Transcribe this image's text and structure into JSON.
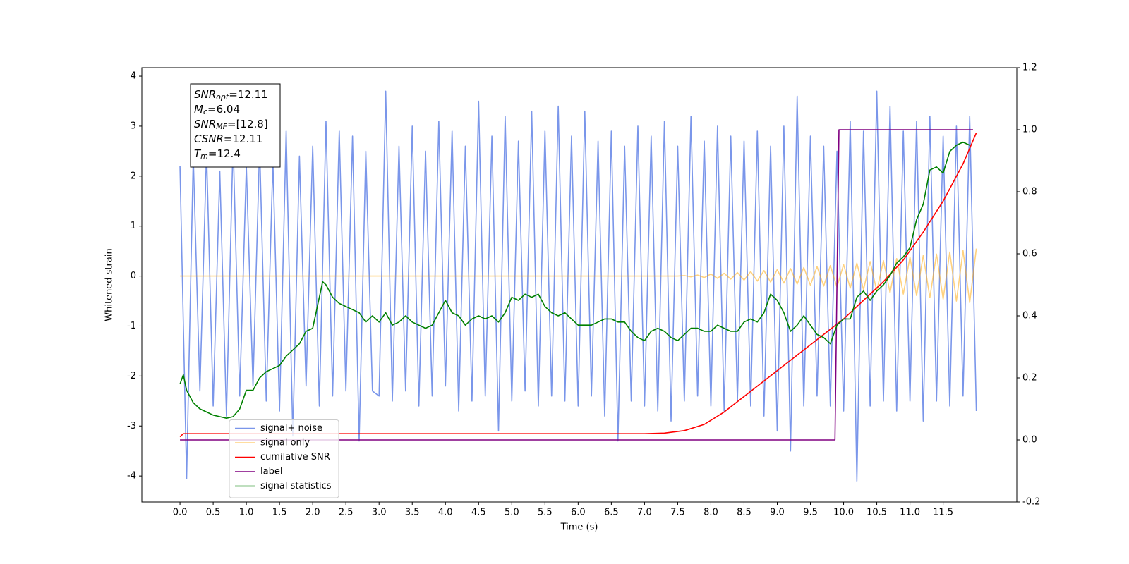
{
  "chart_data": {
    "type": "line",
    "xlabel": "Time (s)",
    "ylabel": "Whitened strain",
    "xlim": [
      -0.575,
      12.61
    ],
    "ylim": [
      -4.52,
      4.17
    ],
    "y2lim": [
      -0.2,
      1.2
    ],
    "xticks": [
      {
        "value": 0,
        "label": "0.0"
      },
      0.5,
      {
        "value": 1,
        "label": "1.0"
      },
      1.5,
      {
        "value": 2,
        "label": "2.0"
      },
      2.5,
      {
        "value": 3,
        "label": "3.0"
      },
      3.5,
      {
        "value": 4,
        "label": "4.0"
      },
      4.5,
      {
        "value": 5,
        "label": "5.0"
      },
      5.5,
      {
        "value": 6,
        "label": "6.0"
      },
      6.5,
      {
        "value": 7,
        "label": "7.0"
      },
      7.5,
      {
        "value": 8,
        "label": "8.0"
      },
      8.5,
      {
        "value": 9,
        "label": "9.0"
      },
      9.5,
      {
        "value": 10,
        "label": "10.0"
      },
      10.5,
      {
        "value": 11,
        "label": "11.0"
      },
      11.5
    ],
    "yticks": [
      -4,
      -3,
      -2,
      -1,
      0,
      1,
      2,
      3,
      4
    ],
    "y2ticks": [
      -0.2,
      {
        "value": 0,
        "label": "0.0"
      },
      0.2,
      0.4,
      0.6,
      0.8,
      {
        "value": 1,
        "label": "1.0"
      },
      1.2
    ],
    "legend_loc": "lower left",
    "annotation": [
      {
        "name": "SNR",
        "sub": "opt",
        "text": "=12.11"
      },
      {
        "name": "M",
        "sub": "c",
        "text": "=6.04"
      },
      {
        "name": "SNR",
        "sub": "MF",
        "text": "=[12.8]"
      },
      {
        "name": "CSNR",
        "text": "=12.11"
      },
      {
        "name": "T",
        "sub": "m",
        "text": "=12.4"
      }
    ],
    "series": [
      {
        "name": "signal+ noise",
        "color": "#4169e1",
        "opacity": 0.7,
        "x": [
          0,
          0.1,
          0.2,
          0.3,
          0.4,
          0.5,
          0.6,
          0.7,
          0.8,
          0.9,
          1.0,
          1.1,
          1.2,
          1.3,
          1.4,
          1.5,
          1.6,
          1.7,
          1.8,
          1.9,
          2.0,
          2.1,
          2.2,
          2.3,
          2.4,
          2.5,
          2.6,
          2.7,
          2.8,
          2.9,
          3.0,
          3.1,
          3.2,
          3.3,
          3.4,
          3.5,
          3.6,
          3.7,
          3.8,
          3.9,
          4.0,
          4.1,
          4.2,
          4.3,
          4.4,
          4.5,
          4.6,
          4.7,
          4.8,
          4.9,
          5.0,
          5.1,
          5.2,
          5.3,
          5.4,
          5.5,
          5.6,
          5.7,
          5.8,
          5.9,
          6.0,
          6.1,
          6.2,
          6.3,
          6.4,
          6.5,
          6.6,
          6.7,
          6.8,
          6.9,
          7.0,
          7.1,
          7.2,
          7.3,
          7.4,
          7.5,
          7.6,
          7.7,
          7.8,
          7.9,
          8.0,
          8.1,
          8.2,
          8.3,
          8.4,
          8.5,
          8.6,
          8.7,
          8.8,
          8.9,
          9.0,
          9.1,
          9.2,
          9.3,
          9.4,
          9.5,
          9.6,
          9.7,
          9.8,
          9.9,
          10.0,
          10.1,
          10.2,
          10.3,
          10.4,
          10.5,
          10.6,
          10.7,
          10.8,
          10.9,
          11.0,
          11.1,
          11.2,
          11.3,
          11.4,
          11.5,
          11.6,
          11.7,
          11.8,
          11.9,
          12.0
        ],
        "values": [
          2.2,
          -4.05,
          2.4,
          -2.3,
          2.5,
          -2.6,
          2.1,
          -2.8,
          2.7,
          -2.4,
          2.2,
          -2.2,
          2.6,
          -2.5,
          2.3,
          -2.7,
          2.9,
          -3.2,
          2.4,
          -2.2,
          2.6,
          -2.6,
          3.1,
          -2.4,
          2.9,
          -2.3,
          2.8,
          -3.3,
          2.5,
          -2.3,
          -2.4,
          3.7,
          -2.5,
          2.6,
          -2.3,
          3.0,
          -2.6,
          2.5,
          -2.4,
          3.1,
          -2.2,
          2.9,
          -2.7,
          2.6,
          -2.5,
          3.5,
          -2.4,
          2.8,
          -3.1,
          3.2,
          -2.5,
          2.7,
          -2.3,
          3.3,
          -2.6,
          2.9,
          -2.4,
          3.4,
          -2.5,
          2.8,
          -2.6,
          3.3,
          -2.4,
          2.7,
          -2.8,
          2.9,
          -3.3,
          2.6,
          -2.5,
          3.0,
          -2.6,
          2.8,
          -2.7,
          3.1,
          -2.9,
          2.6,
          -2.5,
          3.2,
          -2.4,
          2.7,
          -2.6,
          3.0,
          -2.7,
          2.8,
          -2.5,
          2.7,
          -2.6,
          2.9,
          -2.8,
          2.6,
          -3.1,
          3.0,
          -3.5,
          3.6,
          -2.6,
          2.8,
          -2.4,
          2.6,
          -2.6,
          2.5,
          -2.7,
          3.1,
          -4.1,
          2.9,
          -2.6,
          3.7,
          -2.5,
          3.4,
          -2.7,
          2.9,
          -2.5,
          3.1,
          -2.9,
          3.2,
          -2.5,
          2.8,
          -2.6,
          3.0,
          -2.4,
          3.2,
          -2.7
        ]
      },
      {
        "name": "signal only",
        "color": "#ffa500",
        "opacity": 0.5,
        "x": [
          0,
          7.5,
          7.6,
          7.7,
          7.8,
          7.9,
          8.0,
          8.1,
          8.2,
          8.3,
          8.4,
          8.5,
          8.6,
          8.7,
          8.8,
          8.9,
          9.0,
          9.1,
          9.2,
          9.3,
          9.4,
          9.5,
          9.6,
          9.7,
          9.8,
          9.9,
          10.0,
          10.1,
          10.2,
          10.3,
          10.4,
          10.5,
          10.6,
          10.7,
          10.8,
          10.9,
          11.0,
          11.1,
          11.2,
          11.3,
          11.4,
          11.5,
          11.6,
          11.7,
          11.8,
          11.9,
          12.0
        ],
        "values": [
          0,
          0,
          0.01,
          -0.015,
          0.02,
          -0.03,
          0.04,
          -0.045,
          0.055,
          -0.06,
          0.07,
          -0.08,
          0.09,
          -0.1,
          0.11,
          -0.12,
          0.13,
          -0.14,
          0.15,
          -0.16,
          0.17,
          -0.18,
          0.19,
          -0.2,
          0.21,
          -0.22,
          0.23,
          -0.24,
          0.26,
          -0.27,
          0.29,
          -0.3,
          0.31,
          -0.33,
          0.35,
          -0.36,
          0.38,
          -0.39,
          0.41,
          -0.43,
          0.44,
          -0.46,
          0.48,
          -0.5,
          0.51,
          -0.53,
          0.55
        ]
      },
      {
        "name": "cumilative SNR",
        "color": "#ff0000",
        "axis": "y2",
        "x": [
          0,
          0.05,
          7.0,
          7.3,
          7.6,
          7.9,
          8.2,
          8.5,
          8.8,
          9.1,
          9.4,
          9.7,
          10.0,
          10.3,
          10.6,
          10.9,
          11.2,
          11.5,
          11.8,
          12.0
        ],
        "values": [
          0.01,
          0.02,
          0.02,
          0.022,
          0.03,
          0.05,
          0.09,
          0.14,
          0.19,
          0.24,
          0.29,
          0.34,
          0.39,
          0.45,
          0.51,
          0.58,
          0.67,
          0.77,
          0.89,
          0.99
        ]
      },
      {
        "name": "label",
        "color": "#800080",
        "axis": "y2",
        "x": [
          0,
          9.87,
          9.93,
          11.95
        ],
        "values": [
          0,
          0,
          1,
          1
        ]
      },
      {
        "name": "signal statistics",
        "color": "#008000",
        "axis": "y2",
        "x": [
          0,
          0.05,
          0.1,
          0.2,
          0.3,
          0.4,
          0.5,
          0.6,
          0.7,
          0.8,
          0.9,
          1.0,
          1.1,
          1.2,
          1.3,
          1.4,
          1.5,
          1.6,
          1.7,
          1.8,
          1.9,
          2.0,
          2.1,
          2.15,
          2.2,
          2.3,
          2.4,
          2.5,
          2.6,
          2.7,
          2.8,
          2.9,
          3.0,
          3.1,
          3.2,
          3.3,
          3.4,
          3.5,
          3.6,
          3.7,
          3.8,
          3.9,
          4.0,
          4.1,
          4.2,
          4.3,
          4.4,
          4.5,
          4.6,
          4.7,
          4.8,
          4.9,
          5.0,
          5.1,
          5.2,
          5.3,
          5.4,
          5.5,
          5.6,
          5.7,
          5.8,
          5.9,
          6.0,
          6.1,
          6.2,
          6.3,
          6.4,
          6.5,
          6.6,
          6.7,
          6.8,
          6.9,
          7.0,
          7.1,
          7.2,
          7.3,
          7.4,
          7.5,
          7.6,
          7.7,
          7.8,
          7.9,
          8.0,
          8.1,
          8.2,
          8.3,
          8.4,
          8.5,
          8.6,
          8.7,
          8.8,
          8.9,
          9.0,
          9.1,
          9.2,
          9.3,
          9.4,
          9.5,
          9.6,
          9.7,
          9.8,
          9.9,
          10.0,
          10.1,
          10.2,
          10.3,
          10.4,
          10.5,
          10.6,
          10.7,
          10.8,
          10.9,
          11.0,
          11.1,
          11.2,
          11.3,
          11.4,
          11.5,
          11.6,
          11.7,
          11.8,
          11.9
        ],
        "values": [
          0.18,
          0.21,
          0.16,
          0.12,
          0.1,
          0.09,
          0.08,
          0.075,
          0.07,
          0.075,
          0.1,
          0.16,
          0.16,
          0.2,
          0.22,
          0.23,
          0.24,
          0.27,
          0.29,
          0.31,
          0.35,
          0.36,
          0.46,
          0.51,
          0.5,
          0.46,
          0.44,
          0.43,
          0.42,
          0.41,
          0.38,
          0.4,
          0.38,
          0.41,
          0.37,
          0.38,
          0.4,
          0.38,
          0.37,
          0.36,
          0.37,
          0.41,
          0.45,
          0.41,
          0.4,
          0.37,
          0.39,
          0.4,
          0.39,
          0.4,
          0.38,
          0.41,
          0.46,
          0.45,
          0.47,
          0.46,
          0.47,
          0.43,
          0.41,
          0.4,
          0.41,
          0.39,
          0.37,
          0.37,
          0.37,
          0.38,
          0.39,
          0.39,
          0.38,
          0.38,
          0.35,
          0.33,
          0.32,
          0.35,
          0.36,
          0.35,
          0.33,
          0.32,
          0.34,
          0.36,
          0.36,
          0.35,
          0.35,
          0.37,
          0.36,
          0.35,
          0.35,
          0.38,
          0.39,
          0.38,
          0.41,
          0.47,
          0.45,
          0.41,
          0.35,
          0.37,
          0.4,
          0.37,
          0.34,
          0.33,
          0.31,
          0.37,
          0.39,
          0.39,
          0.46,
          0.48,
          0.45,
          0.48,
          0.5,
          0.53,
          0.57,
          0.59,
          0.62,
          0.71,
          0.76,
          0.87,
          0.88,
          0.86,
          0.93,
          0.95,
          0.96,
          0.95
        ]
      }
    ]
  }
}
